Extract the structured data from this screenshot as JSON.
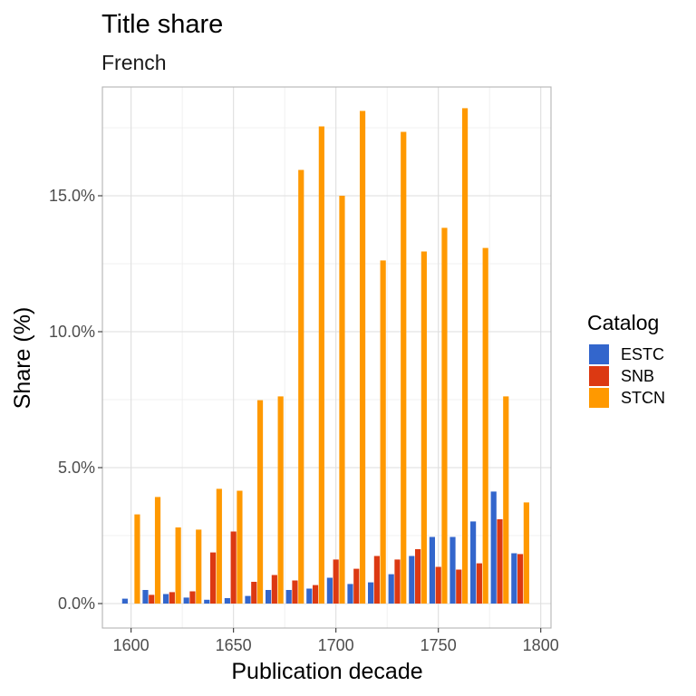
{
  "chart_data": {
    "type": "bar",
    "title": "Title share",
    "subtitle": "French",
    "xlabel": "Publication decade",
    "ylabel": "Share (%)",
    "x_ticks": [
      "1600",
      "1650",
      "1700",
      "1750",
      "1800"
    ],
    "x_tick_values": [
      1600,
      1650,
      1700,
      1750,
      1800
    ],
    "y_ticks": [
      "0.0%",
      "5.0%",
      "10.0%",
      "15.0%"
    ],
    "y_tick_values": [
      0,
      5,
      10,
      15
    ],
    "xlim": [
      1586,
      1805
    ],
    "ylim": [
      -0.9,
      19
    ],
    "grid": true,
    "legend": {
      "title": "Catalog",
      "position": "right"
    },
    "categories": [
      1600,
      1610,
      1620,
      1630,
      1640,
      1650,
      1660,
      1670,
      1680,
      1690,
      1700,
      1710,
      1720,
      1730,
      1740,
      1750,
      1760,
      1770,
      1780,
      1790
    ],
    "series": [
      {
        "name": "ESTC",
        "color": "#3366cc",
        "values": [
          0.18,
          0.5,
          0.35,
          0.22,
          0.14,
          0.2,
          0.28,
          0.5,
          0.5,
          0.55,
          0.95,
          0.72,
          0.78,
          1.08,
          1.75,
          2.45,
          2.45,
          3.02,
          4.12,
          1.85
        ]
      },
      {
        "name": "SNB",
        "color": "#dc3912",
        "values": [
          0,
          0.32,
          0.42,
          0.45,
          1.88,
          2.65,
          0.8,
          1.05,
          0.85,
          0.68,
          1.62,
          1.28,
          1.75,
          1.62,
          2.0,
          1.35,
          1.25,
          1.48,
          3.1,
          1.82
        ]
      },
      {
        "name": "STCN",
        "color": "#ff9900",
        "values": [
          3.28,
          3.92,
          2.8,
          2.72,
          4.22,
          4.15,
          7.48,
          7.62,
          15.95,
          17.55,
          15.0,
          18.12,
          12.62,
          17.35,
          12.95,
          13.82,
          18.22,
          13.08,
          7.62,
          3.72
        ]
      }
    ]
  }
}
